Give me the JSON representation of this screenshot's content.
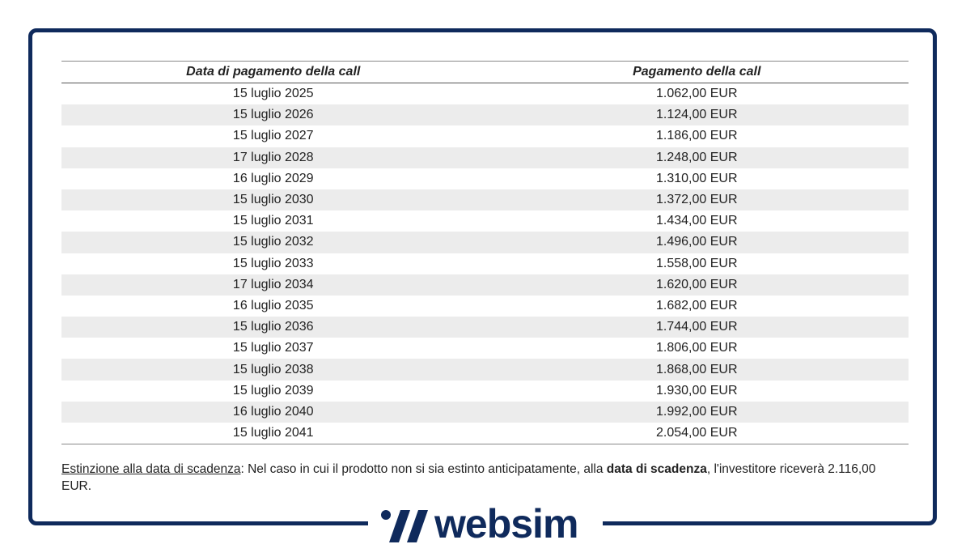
{
  "table": {
    "header": [
      "Data di pagamento della call",
      "Pagamento della call"
    ],
    "rows": [
      [
        "15 luglio 2025",
        "1.062,00 EUR"
      ],
      [
        "15 luglio 2026",
        "1.124,00 EUR"
      ],
      [
        "15 luglio 2027",
        "1.186,00 EUR"
      ],
      [
        "17 luglio 2028",
        "1.248,00 EUR"
      ],
      [
        "16 luglio 2029",
        "1.310,00 EUR"
      ],
      [
        "15 luglio 2030",
        "1.372,00 EUR"
      ],
      [
        "15 luglio 2031",
        "1.434,00 EUR"
      ],
      [
        "15 luglio 2032",
        "1.496,00 EUR"
      ],
      [
        "15 luglio 2033",
        "1.558,00 EUR"
      ],
      [
        "17 luglio 2034",
        "1.620,00 EUR"
      ],
      [
        "16 luglio 2035",
        "1.682,00 EUR"
      ],
      [
        "15 luglio 2036",
        "1.744,00 EUR"
      ],
      [
        "15 luglio 2037",
        "1.806,00 EUR"
      ],
      [
        "15 luglio 2038",
        "1.868,00 EUR"
      ],
      [
        "15 luglio 2039",
        "1.930,00 EUR"
      ],
      [
        "16 luglio 2040",
        "1.992,00 EUR"
      ],
      [
        "15 luglio 2041",
        "2.054,00 EUR"
      ]
    ]
  },
  "note": {
    "label": "Estinzione alla data di scadenza",
    "text1": ": Nel caso in cui il prodotto non si sia estinto anticipatamente, alla ",
    "bold": "data di scadenza",
    "text2": ", l'investitore riceverà 2.116,00 EUR."
  },
  "logo": {
    "text": "websim"
  }
}
